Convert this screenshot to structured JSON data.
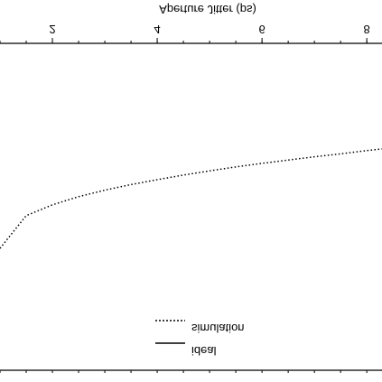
{
  "chart_data": {
    "type": "line",
    "title": "Aperture Jitter (ps)",
    "x": [
      1,
      1.5,
      2,
      2.5,
      3,
      3.5,
      4,
      4.5,
      5,
      5.5,
      6,
      6.5,
      7,
      7.5,
      8,
      8.29
    ],
    "series": [
      {
        "name": "simulation",
        "color": "#000000",
        "values": [
          0.627,
          0.527,
          0.494,
          0.469,
          0.449,
          0.432,
          0.417,
          0.403,
          0.39,
          0.378,
          0.367,
          0.357,
          0.347,
          0.338,
          0.328,
          0.323
        ]
      },
      {
        "name": "ideal",
        "color": "#000000",
        "values": [
          null,
          null,
          null,
          null,
          null,
          null,
          null,
          null,
          null,
          null,
          null,
          null,
          null,
          null,
          null,
          null
        ]
      }
    ],
    "xlim": [
      1,
      8.29
    ],
    "xticks": [
      2,
      4,
      6,
      8
    ],
    "ylim": [
      0,
      1
    ],
    "flipped_vertical": true
  }
}
